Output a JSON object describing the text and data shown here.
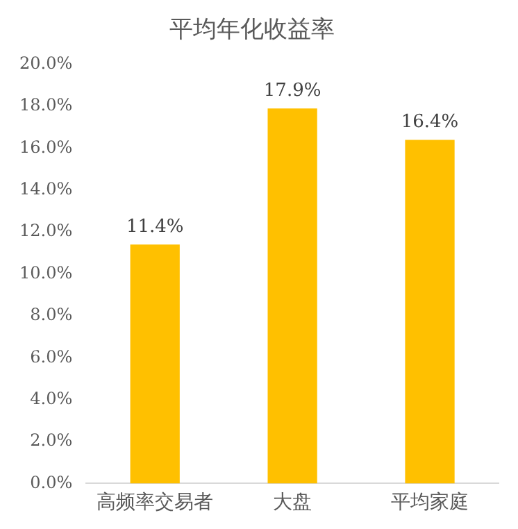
{
  "chart_data": {
    "type": "bar",
    "title": "平均年化收益率",
    "categories": [
      "高频率交易者",
      "大盘",
      "平均家庭"
    ],
    "values": [
      11.4,
      17.9,
      16.4
    ],
    "value_labels": [
      "11.4%",
      "17.9%",
      "16.4%"
    ],
    "color": "#ffc000",
    "ylim": [
      0,
      20
    ],
    "yticks": [
      {
        "value": 0,
        "label": "0.0%"
      },
      {
        "value": 2,
        "label": "2.0%"
      },
      {
        "value": 4,
        "label": "4.0%"
      },
      {
        "value": 6,
        "label": "6.0%"
      },
      {
        "value": 8,
        "label": "8.0%"
      },
      {
        "value": 10,
        "label": "10.0%"
      },
      {
        "value": 12,
        "label": "12.0%"
      },
      {
        "value": 14,
        "label": "14.0%"
      },
      {
        "value": 16,
        "label": "16.0%"
      },
      {
        "value": 18,
        "label": "18.0%"
      },
      {
        "value": 20,
        "label": "20.0%"
      }
    ],
    "grid": false,
    "legend": false
  }
}
